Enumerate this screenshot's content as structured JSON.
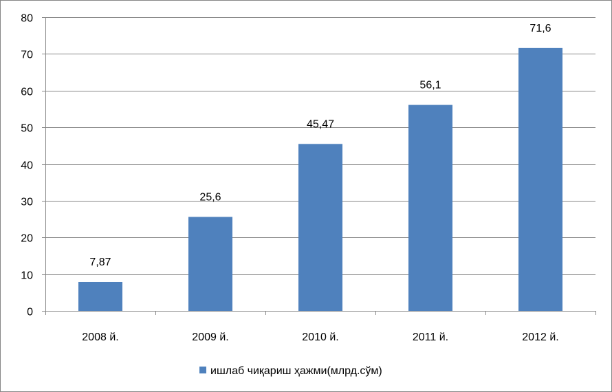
{
  "chart_data": {
    "type": "bar",
    "categories": [
      "2008 й.",
      "2009 й.",
      "2010 й.",
      "2011 й.",
      "2012 й."
    ],
    "series": [
      {
        "name": "ишлаб чиқариш ҳажми(млрд.сўм)",
        "values": [
          7.87,
          25.6,
          45.47,
          56.1,
          71.6
        ],
        "labels": [
          "7,87",
          "25,6",
          "45,47",
          "56,1",
          "71,6"
        ],
        "color": "#4F81BD"
      }
    ],
    "ylim": [
      0,
      80
    ],
    "yticks": [
      0,
      10,
      20,
      30,
      40,
      50,
      60,
      70,
      80
    ],
    "grid": true,
    "legend_position": "bottom",
    "colors": {
      "gridline": "#868686",
      "axis": "#868686",
      "bar": "#4F81BD"
    }
  }
}
